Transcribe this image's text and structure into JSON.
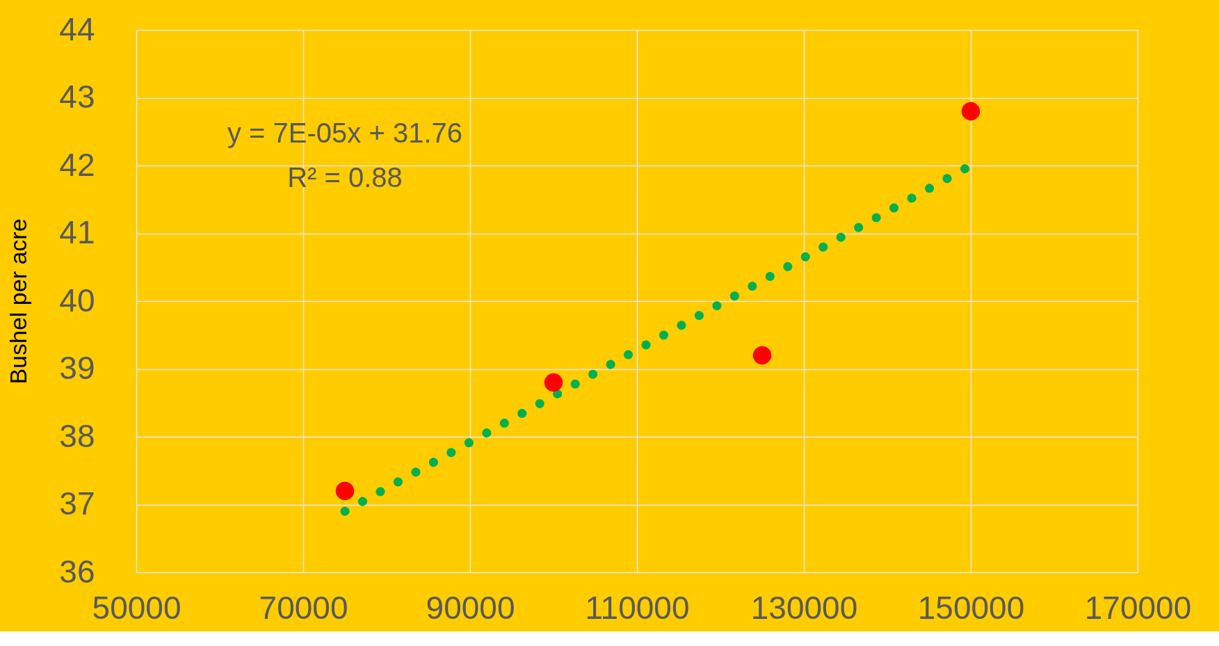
{
  "chart_data": {
    "type": "scatter",
    "ylabel": "Bushel per acre",
    "xlim": [
      50000,
      170000
    ],
    "xticks": [
      50000,
      70000,
      90000,
      110000,
      130000,
      150000,
      170000
    ],
    "ylim": [
      36,
      44
    ],
    "yticks": [
      36,
      37,
      38,
      39,
      40,
      41,
      42,
      43,
      44
    ],
    "grid": true,
    "series": [
      {
        "type": "line",
        "color": "#00b050",
        "line_style": "dotted",
        "x": [
          75000,
          150000
        ],
        "values": [
          36.9,
          42.0
        ]
      },
      {
        "type": "scatter",
        "marker": "circle",
        "color": "#ff0000",
        "x": [
          75000,
          100000,
          125000,
          150000
        ],
        "values": [
          37.2,
          38.8,
          39.2,
          42.8
        ]
      }
    ],
    "annotations": [
      "y = 7E-05x + 31.76",
      "R² = 0.88"
    ]
  }
}
